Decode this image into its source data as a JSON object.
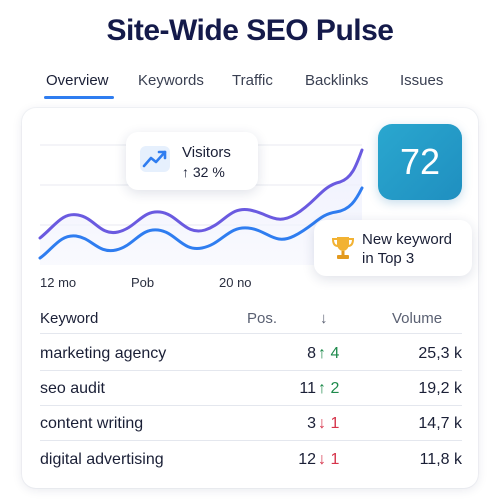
{
  "page": {
    "title": "Site-Wide SEO Pulse"
  },
  "tabs": [
    {
      "label": "Overview",
      "active": true
    },
    {
      "label": "Keywords",
      "active": false
    },
    {
      "label": "Traffic",
      "active": false
    },
    {
      "label": "Backlinks",
      "active": false
    },
    {
      "label": "Issues",
      "active": false
    }
  ],
  "chart": {
    "x_ticks": [
      "12 mo",
      "Pob",
      "20 no"
    ],
    "series_colors": {
      "primary": "#6a5ae0",
      "secondary": "#2f7df0",
      "fill": "#eef0fd"
    }
  },
  "visitors": {
    "label": "Visitors",
    "change": "↑ 32 %",
    "icon": "trend-up-icon"
  },
  "score": {
    "value": "72"
  },
  "new_keyword": {
    "line1": "New keyword",
    "line2": "in Top 3",
    "icon": "trophy-icon"
  },
  "table": {
    "headers": {
      "keyword": "Keyword",
      "pos": "Pos.",
      "change": "↓",
      "volume": "Volume"
    },
    "rows": [
      {
        "keyword": "marketing agency",
        "pos": "8",
        "change": "↑ 4",
        "direction": "up",
        "volume": "25,3 k"
      },
      {
        "keyword": "seo audit",
        "pos": "11",
        "change": "↑ 2",
        "direction": "up",
        "volume": "19,2 k"
      },
      {
        "keyword": "content writing",
        "pos": "3",
        "change": "↓ 1",
        "direction": "down",
        "volume": "14,7 k"
      },
      {
        "keyword": "digital advertising",
        "pos": "12",
        "change": "↓ 1",
        "direction": "down",
        "volume": "11,8 k"
      }
    ]
  },
  "colors": {
    "accent": "#2f7df0",
    "up": "#1e8a4c",
    "down": "#d6334a",
    "score_bg": "#2aa7cf"
  }
}
